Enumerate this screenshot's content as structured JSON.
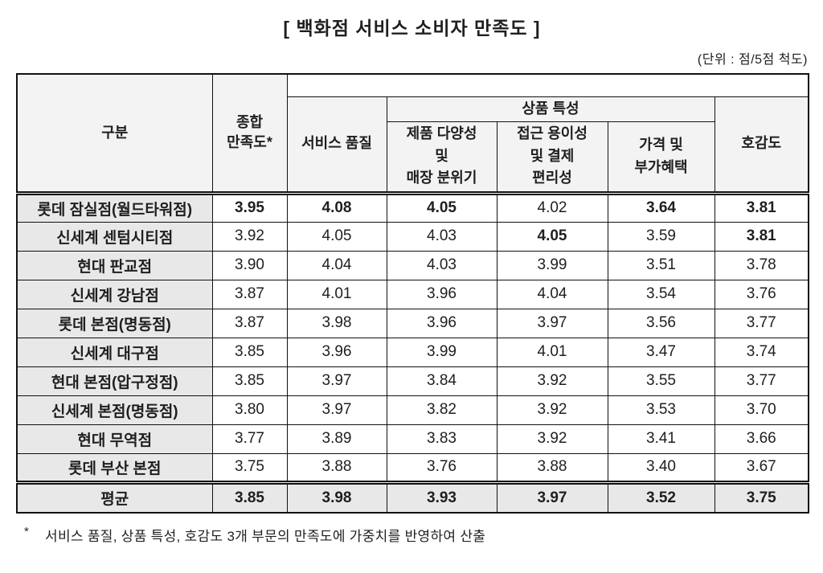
{
  "title": "[ 백화점 서비스 소비자 만족도 ]",
  "unit_note": "(단위 : 점/5점 척도)",
  "table": {
    "header": {
      "gubun": "구분",
      "overall": "종합\n만족도*",
      "service": "서비스 품질",
      "product_group": "상품 특성",
      "sub_variety": "제품 다양성\n및\n매장 분위기",
      "sub_access": "접근 용이성\n및 결제\n편리성",
      "sub_price": "가격 및\n부가혜택",
      "favor": "호감도"
    },
    "rows": [
      {
        "store": "롯데 잠실점(월드타워점)",
        "values": [
          "3.95",
          "4.08",
          "4.05",
          "4.02",
          "3.64",
          "3.81"
        ],
        "bold": [
          true,
          true,
          true,
          false,
          true,
          true
        ]
      },
      {
        "store": "신세계 센텀시티점",
        "values": [
          "3.92",
          "4.05",
          "4.03",
          "4.05",
          "3.59",
          "3.81"
        ],
        "bold": [
          false,
          false,
          false,
          true,
          false,
          true
        ]
      },
      {
        "store": "현대 판교점",
        "values": [
          "3.90",
          "4.04",
          "4.03",
          "3.99",
          "3.51",
          "3.78"
        ],
        "bold": [
          false,
          false,
          false,
          false,
          false,
          false
        ]
      },
      {
        "store": "신세계 강남점",
        "values": [
          "3.87",
          "4.01",
          "3.96",
          "4.04",
          "3.54",
          "3.76"
        ],
        "bold": [
          false,
          false,
          false,
          false,
          false,
          false
        ]
      },
      {
        "store": "롯데 본점(명동점)",
        "values": [
          "3.87",
          "3.98",
          "3.96",
          "3.97",
          "3.56",
          "3.77"
        ],
        "bold": [
          false,
          false,
          false,
          false,
          false,
          false
        ]
      },
      {
        "store": "신세계 대구점",
        "values": [
          "3.85",
          "3.96",
          "3.99",
          "4.01",
          "3.47",
          "3.74"
        ],
        "bold": [
          false,
          false,
          false,
          false,
          false,
          false
        ]
      },
      {
        "store": "현대 본점(압구정점)",
        "values": [
          "3.85",
          "3.97",
          "3.84",
          "3.92",
          "3.55",
          "3.77"
        ],
        "bold": [
          false,
          false,
          false,
          false,
          false,
          false
        ]
      },
      {
        "store": "신세계 본점(명동점)",
        "values": [
          "3.80",
          "3.97",
          "3.82",
          "3.92",
          "3.53",
          "3.70"
        ],
        "bold": [
          false,
          false,
          false,
          false,
          false,
          false
        ]
      },
      {
        "store": "현대 무역점",
        "values": [
          "3.77",
          "3.89",
          "3.83",
          "3.92",
          "3.41",
          "3.66"
        ],
        "bold": [
          false,
          false,
          false,
          false,
          false,
          false
        ]
      },
      {
        "store": "롯데 부산 본점",
        "values": [
          "3.75",
          "3.88",
          "3.76",
          "3.88",
          "3.40",
          "3.67"
        ],
        "bold": [
          false,
          false,
          false,
          false,
          false,
          false
        ]
      }
    ],
    "average": {
      "label": "평균",
      "values": [
        "3.85",
        "3.98",
        "3.93",
        "3.97",
        "3.52",
        "3.75"
      ]
    }
  },
  "footnote": {
    "marker": "*",
    "text": "서비스 품질, 상품 특성, 호감도 3개 부문의 만족도에 가중치를 반영하여 산출"
  },
  "colors": {
    "border": "#111111",
    "header_bg": "#f3f3f3",
    "label_bg": "#e8e8e8",
    "text": "#1f1f1f"
  }
}
